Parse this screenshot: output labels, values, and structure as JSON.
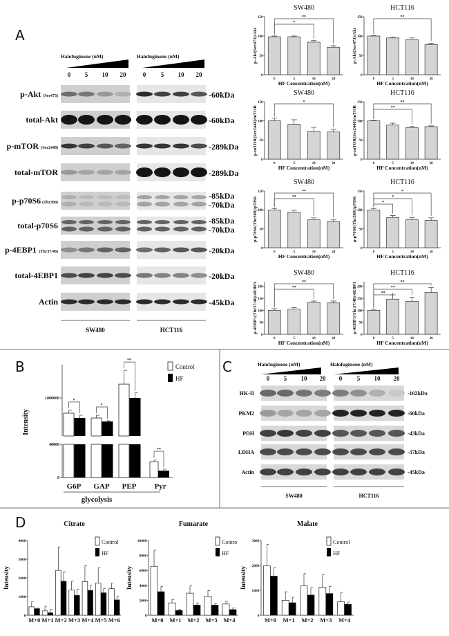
{
  "panels": {
    "a": "A",
    "b": "B",
    "c": "C",
    "d": "D"
  },
  "blot_a": {
    "treatment_label": "Halofuginone (nM)",
    "lanes": [
      "0",
      "5",
      "10",
      "20"
    ],
    "cell_lines": [
      "SW480",
      "HCT116"
    ],
    "rows": [
      {
        "label": "p-Akt",
        "sub": "(Ser473)",
        "kda": [
          "-60kDa"
        ]
      },
      {
        "label": "total-Akt",
        "sub": "",
        "kda": [
          "-60kDa"
        ]
      },
      {
        "label": "p-mTOR",
        "sub": "(Ser2448)",
        "kda": [
          "-289kDa"
        ]
      },
      {
        "label": "total-mTOR",
        "sub": "",
        "kda": [
          "-289kDa"
        ]
      },
      {
        "label": "p-p70S6",
        "sub": "(Thr389)",
        "kda": [
          "-85kDa",
          "-70kDa"
        ]
      },
      {
        "label": "total-p70S6",
        "sub": "",
        "kda": [
          "-85kDa",
          "-70kDa"
        ]
      },
      {
        "label": "p-4EBP1",
        "sub": "(Thr37/46)",
        "kda": [
          "-20kDa"
        ]
      },
      {
        "label": "total-4EBP1",
        "sub": "",
        "kda": [
          "-20kDa"
        ]
      },
      {
        "label": "Actin",
        "sub": "",
        "kda": [
          "-45kDa"
        ]
      }
    ]
  },
  "blot_c": {
    "treatment_label": "Halofuginone (nM)",
    "lanes": [
      "0",
      "5",
      "10",
      "20"
    ],
    "cell_lines": [
      "SW480",
      "HCT116"
    ],
    "rows": [
      {
        "label": "HK-II",
        "kda": "-102kDa"
      },
      {
        "label": "PKM2",
        "kda": "-60kDa"
      },
      {
        "label": "PDH",
        "kda": "-43kDa"
      },
      {
        "label": "LDHA",
        "kda": "-37kDa"
      },
      {
        "label": "Actin",
        "kda": "-45kDa"
      }
    ]
  },
  "chart_data": [
    {
      "type": "bar",
      "title": "SW480",
      "ylabel": "p-Akt(Ser473)/Akt",
      "xlabel": "HF Concentration(nM)",
      "categories": [
        "0",
        "5",
        "10",
        "20"
      ],
      "values": [
        98,
        98,
        84,
        71
      ],
      "error_top": [
        100,
        100,
        88,
        75
      ],
      "ylim": [
        0,
        150
      ],
      "yticks": [
        "0",
        "50",
        "100",
        "150"
      ],
      "significance": [
        {
          "from": 0,
          "to": 2,
          "label": "*"
        },
        {
          "from": 0,
          "to": 3,
          "label": "**"
        }
      ]
    },
    {
      "type": "bar",
      "title": "HCT116",
      "ylabel": "p-Akt(Ser473)/Akt",
      "xlabel": "HF Concentration(nM)",
      "categories": [
        "0",
        "5",
        "10",
        "20"
      ],
      "values": [
        100,
        95,
        91,
        78
      ],
      "error_top": [
        101,
        97,
        95,
        81
      ],
      "ylim": [
        0,
        150
      ],
      "yticks": [
        "0",
        "50",
        "100",
        "150"
      ],
      "significance": [
        {
          "from": 0,
          "to": 3,
          "label": "**"
        }
      ]
    },
    {
      "type": "bar",
      "title": "SW480",
      "ylabel": "p-mTOR(Ser2448)/mTOR",
      "xlabel": "HF Concentration(nM)",
      "categories": [
        "0",
        "5",
        "10",
        "20"
      ],
      "values": [
        100,
        91,
        73,
        71
      ],
      "error_top": [
        107,
        103,
        83,
        78
      ],
      "ylim": [
        0,
        150
      ],
      "yticks": [
        "0",
        "50",
        "100",
        "150"
      ],
      "significance": [
        {
          "from": 0,
          "to": 3,
          "label": "*"
        }
      ]
    },
    {
      "type": "bar",
      "title": "HCT116",
      "ylabel": "p-mTOR(Ser2448)/mTOR",
      "xlabel": "HF Concentration(nM)",
      "categories": [
        "0",
        "5",
        "10",
        "20"
      ],
      "values": [
        100,
        89,
        82,
        85
      ],
      "error_top": [
        101,
        94,
        86,
        87
      ],
      "ylim": [
        0,
        150
      ],
      "yticks": [
        "0",
        "50",
        "100",
        "150"
      ],
      "significance": [
        {
          "from": 0,
          "to": 2,
          "label": "**"
        },
        {
          "from": 0,
          "to": 3,
          "label": "**"
        }
      ]
    },
    {
      "type": "bar",
      "title": "SW480",
      "ylabel": "p-p70S6(Thr389)/p70S6",
      "xlabel": "HF Concentration(nM)",
      "categories": [
        "0",
        "5",
        "10",
        "20"
      ],
      "values": [
        100,
        94,
        74,
        69
      ],
      "error_top": [
        104,
        99,
        79,
        74
      ],
      "ylim": [
        0,
        150
      ],
      "yticks": [
        "0",
        "50",
        "100",
        "150"
      ],
      "significance": [
        {
          "from": 0,
          "to": 2,
          "label": "**"
        },
        {
          "from": 0,
          "to": 3,
          "label": "**"
        }
      ]
    },
    {
      "type": "bar",
      "title": "HCT116",
      "ylabel": "p-p70S6(Thr389)/p70S6",
      "xlabel": "HF Concentration(nM)",
      "categories": [
        "0",
        "5",
        "10",
        "20"
      ],
      "values": [
        100,
        80,
        74,
        72
      ],
      "error_top": [
        104,
        85,
        80,
        79
      ],
      "ylim": [
        0,
        150
      ],
      "yticks": [
        "0",
        "50",
        "100",
        "150"
      ],
      "significance": [
        {
          "from": 0,
          "to": 1,
          "label": "*"
        },
        {
          "from": 0,
          "to": 2,
          "label": "*"
        },
        {
          "from": 0,
          "to": 3,
          "label": "*"
        }
      ]
    },
    {
      "type": "bar",
      "title": "SW480",
      "ylabel": "p-4EBP1(Thr37/46)/4EBP1",
      "xlabel": "HF Concentration(nM)",
      "categories": [
        "0",
        "5",
        "10",
        "20"
      ],
      "values": [
        100,
        105,
        133,
        131
      ],
      "error_top": [
        107,
        112,
        139,
        139
      ],
      "ylim": [
        0,
        220
      ],
      "yticks": [
        "0",
        "50",
        "100",
        "150",
        "200"
      ],
      "significance": [
        {
          "from": 0,
          "to": 2,
          "label": "**"
        },
        {
          "from": 0,
          "to": 3,
          "label": "**"
        }
      ]
    },
    {
      "type": "bar",
      "title": "HCT116",
      "ylabel": "p-4EBP1(Thr37/46)/4EBP1",
      "xlabel": "HF Concentration(nM)",
      "categories": [
        "0",
        "5",
        "10",
        "20"
      ],
      "values": [
        100,
        147,
        138,
        175
      ],
      "error_top": [
        104,
        165,
        155,
        196
      ],
      "ylim": [
        0,
        220
      ],
      "yticks": [
        "0",
        "50",
        "100",
        "150",
        "200"
      ],
      "significance": [
        {
          "from": 0,
          "to": 1,
          "label": "**"
        },
        {
          "from": 0,
          "to": 2,
          "label": "**"
        },
        {
          "from": 0,
          "to": 3,
          "label": "**"
        }
      ]
    },
    {
      "type": "bar",
      "ylabel": "Intensity",
      "xlabel": "glycolysis",
      "broken_axis": true,
      "categories": [
        "G6P",
        "GAP",
        "PEP",
        "Pyr"
      ],
      "series": [
        {
          "name": "Control",
          "color": "#ffffff",
          "values": [
            840000,
            789000,
            1145000,
            19000
          ],
          "error_top": [
            870000,
            818000,
            1290000,
            21000
          ]
        },
        {
          "name": "HF",
          "color": "#000000",
          "values": [
            789000,
            753000,
            1000000,
            8300
          ],
          "error_top": [
            818000,
            760000,
            1055000,
            10000
          ]
        }
      ],
      "yticks": [
        "0",
        "40000",
        "1000000"
      ],
      "legend": "top-right",
      "significance": [
        {
          "category": 0,
          "label": "*"
        },
        {
          "category": 1,
          "label": "*"
        },
        {
          "category": 2,
          "label": "**"
        },
        {
          "category": 3,
          "label": "**"
        }
      ]
    },
    {
      "type": "bar",
      "title": "Citrate",
      "ylabel": "Intensity",
      "categories": [
        "M+0",
        "M+1",
        "M+2",
        "M+3",
        "M+4",
        "M+5",
        "M+6"
      ],
      "series": [
        {
          "name": "Control",
          "color": "#ffffff",
          "values": [
            450,
            230,
            2400,
            1350,
            1800,
            1720,
            1420
          ],
          "error_top": [
            730,
            480,
            3640,
            1820,
            2650,
            2540,
            1720
          ]
        },
        {
          "name": "HF",
          "color": "#000000",
          "values": [
            350,
            130,
            1820,
            1060,
            1330,
            1200,
            820
          ],
          "error_top": [
            380,
            300,
            2330,
            1380,
            1600,
            1440,
            1000
          ]
        }
      ],
      "ylim": [
        0,
        4000
      ],
      "yticks": [
        "0",
        "1000",
        "2000",
        "3000",
        "4000"
      ],
      "legend": "top-right"
    },
    {
      "type": "bar",
      "title": "Fumarate",
      "ylabel": "Intensity",
      "categories": [
        "M+0",
        "M+1",
        "M+2",
        "M+3",
        "M+4"
      ],
      "series": [
        {
          "name": "Contro",
          "color": "#ffffff",
          "values": [
            6550,
            1650,
            2950,
            2500,
            1500
          ],
          "error_top": [
            8700,
            2100,
            3950,
            3300,
            1850
          ]
        },
        {
          "name": "HF",
          "color": "#000000",
          "values": [
            3150,
            650,
            1350,
            1350,
            750
          ],
          "error_top": [
            3850,
            750,
            1650,
            1600,
            1000
          ]
        }
      ],
      "ylim": [
        0,
        10000
      ],
      "yticks": [
        "0",
        "2000",
        "4000",
        "6000",
        "8000",
        "10000"
      ],
      "legend": "top-right"
    },
    {
      "type": "bar",
      "title": "Malate",
      "ylabel": "Intensity",
      "categories": [
        "M+0",
        "M+1",
        "M+2",
        "M+3",
        "M+4"
      ],
      "series": [
        {
          "name": "Control",
          "color": "#ffffff",
          "values": [
            1980,
            600,
            1180,
            1120,
            540
          ],
          "error_top": [
            2850,
            940,
            1670,
            1620,
            920
          ]
        },
        {
          "name": "HF",
          "color": "#000000",
          "values": [
            1570,
            500,
            810,
            870,
            440
          ],
          "error_top": [
            1900,
            720,
            1110,
            1160,
            530
          ]
        }
      ],
      "ylim": [
        0,
        3000
      ],
      "yticks": [
        "0",
        "1000",
        "2000",
        "3000"
      ],
      "legend": "top-right"
    }
  ]
}
